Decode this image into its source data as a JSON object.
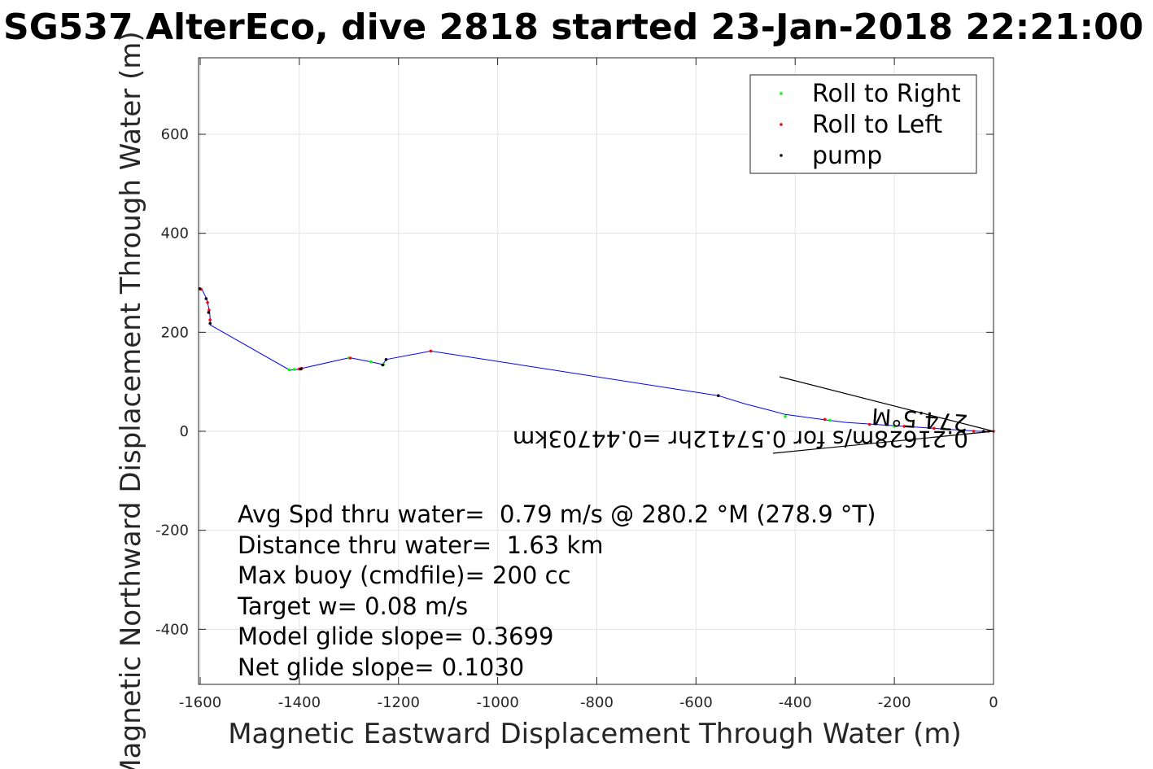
{
  "chart_data": {
    "type": "line",
    "title": "SG537 AlterEco, dive 2818 started 23-Jan-2018 22:21:00",
    "xlabel": "Magnetic Eastward Displacement Through Water (m)",
    "ylabel": "Magnetic Northward Displacement Through Water (m)",
    "xlim": [
      -1600,
      0
    ],
    "ylim": [
      -500,
      750
    ],
    "xticks": [
      -1600,
      -1400,
      -1200,
      -1000,
      -800,
      -600,
      -400,
      -200,
      0
    ],
    "yticks": [
      -400,
      -200,
      0,
      200,
      400,
      600
    ],
    "grid": true,
    "legend_position": "top-right",
    "legend": [
      {
        "name": "Roll to Right",
        "color": "#00ff00"
      },
      {
        "name": "Roll to Left",
        "color": "#ff0000"
      },
      {
        "name": "pump",
        "color": "#000000"
      }
    ],
    "track": {
      "color": "#0000ff",
      "points": [
        [
          0,
          0
        ],
        [
          -30,
          0
        ],
        [
          -60,
          2
        ],
        [
          -90,
          4
        ],
        [
          -120,
          6
        ],
        [
          -150,
          8
        ],
        [
          -180,
          10
        ],
        [
          -210,
          12
        ],
        [
          -240,
          14
        ],
        [
          -270,
          16
        ],
        [
          -300,
          18
        ],
        [
          -330,
          22
        ],
        [
          -360,
          26
        ],
        [
          -390,
          30
        ],
        [
          -420,
          34
        ],
        [
          -450,
          42
        ],
        [
          -500,
          55
        ],
        [
          -555,
          72
        ],
        [
          -1135,
          162
        ],
        [
          -1225,
          145
        ],
        [
          -1232,
          135
        ],
        [
          -1255,
          140
        ],
        [
          -1295,
          148
        ],
        [
          -1302,
          148
        ],
        [
          -1395,
          127
        ],
        [
          -1410,
          124
        ],
        [
          -1420,
          124
        ],
        [
          -1580,
          215
        ],
        [
          -1580,
          220
        ],
        [
          -1580,
          230
        ],
        [
          -1581,
          240
        ],
        [
          -1583,
          250
        ],
        [
          -1585,
          260
        ],
        [
          -1587,
          268
        ],
        [
          -1595,
          284
        ],
        [
          -1598,
          287
        ],
        [
          -1600,
          288
        ]
      ]
    },
    "markers": {
      "roll_right": [
        [
          -1230,
          135
        ],
        [
          -1255,
          140
        ],
        [
          -1420,
          124
        ],
        [
          -1410,
          125
        ],
        [
          -1300,
          148
        ],
        [
          -420,
          30
        ],
        [
          -330,
          22
        ],
        [
          -200,
          10
        ],
        [
          -100,
          5
        ]
      ],
      "roll_left": [
        [
          -1598,
          287
        ],
        [
          -1585,
          260
        ],
        [
          -1582,
          245
        ],
        [
          -1580,
          225
        ],
        [
          -1400,
          126
        ],
        [
          -1395,
          127
        ],
        [
          -1297,
          148
        ],
        [
          -1135,
          162
        ],
        [
          -340,
          24
        ],
        [
          -250,
          14
        ],
        [
          -180,
          10
        ],
        [
          -120,
          6
        ],
        [
          -40,
          0
        ],
        [
          -10,
          0
        ],
        [
          0,
          0
        ]
      ],
      "pump": [
        [
          -1601,
          288
        ],
        [
          -1588,
          268
        ],
        [
          -1583,
          240
        ],
        [
          -1580,
          218
        ],
        [
          -1397,
          126
        ],
        [
          -1225,
          145
        ],
        [
          -1232,
          134
        ],
        [
          -555,
          72
        ],
        [
          -60,
          1
        ],
        [
          -20,
          0
        ]
      ]
    },
    "current_vector_text": "0.21628m/s for 0.57412hr =0.44703km",
    "vector_heading_text": "274.5°M"
  },
  "stats": [
    "Avg Spd thru water=  0.79 m/s @ 280.2 °M (278.9 °T)",
    "Distance thru water=  1.63 km",
    "Max buoy (cmdfile)= 200 cc",
    "Target w= 0.08 m/s",
    "Model glide slope= 0.3699",
    "Net glide slope= 0.1030"
  ]
}
